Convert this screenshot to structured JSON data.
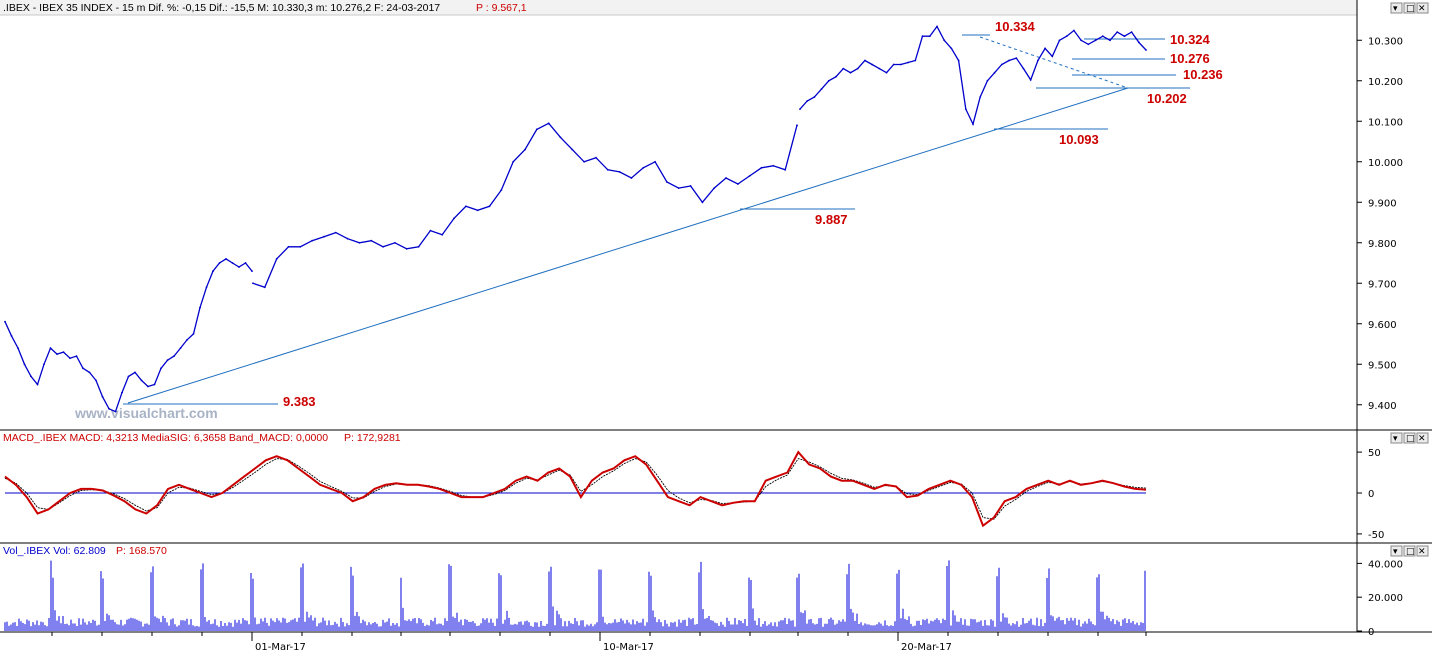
{
  "panels": {
    "price": {
      "header_prefix": ".IBEX",
      "header": ".IBEX - IBEX 35 INDEX -  15 m  Dif. %: -0,15  Dif.: -15,5  M: 10.330,3  m: 10.276,2  F: 24-03-2017",
      "header_p": "P : 9.567,1"
    },
    "macd": {
      "header": "MACD_.IBEX MACD: 4,3213  MediaSIG: 6,3658  Band_MACD: 0,0000",
      "header_p": "P: 172,9281"
    },
    "volume": {
      "header": "Vol_.IBEX Vol: 62.809",
      "header_p": "P: 168.570"
    }
  },
  "watermark": "www.visualchart.com",
  "window_buttons": [
    "▾",
    "□",
    "✕"
  ],
  "colors": {
    "price_line": "#0000cc",
    "trend_line": "#1f6fbf",
    "level_text": "#cc0000",
    "macd_line": "#cc0000",
    "signal_line": "#000000",
    "volume_bar": "#0000dd",
    "axis": "#000000"
  },
  "chart_data": [
    {
      "type": "line",
      "title": ".IBEX - IBEX 35 INDEX - 15 m",
      "x_tick_labels": [
        "01-Mar-17",
        "10-Mar-17",
        "20-Mar-17"
      ],
      "y_ticks": [
        "9.400",
        "9.500",
        "9.600",
        "9.700",
        "9.800",
        "9.900",
        "10.000",
        "10.100",
        "10.200",
        "10.300"
      ],
      "ylim": [
        9350,
        10350
      ],
      "series": [
        {
          "values": [
            9605,
            9570,
            9540,
            9500,
            9470,
            9450,
            9500,
            9540,
            9525,
            9530,
            9515,
            9520,
            9490,
            9480,
            9460,
            9420,
            9390,
            9383,
            9430,
            9470,
            9480,
            9460,
            9445,
            9450,
            9490,
            9510,
            9520,
            9540,
            9560,
            9575,
            9640,
            9690,
            9730,
            9750,
            9760,
            9750,
            9740,
            9750,
            9730,
            9700,
            9690,
            9760,
            9790,
            9790,
            9805,
            9815,
            9825,
            9810,
            9800,
            9805,
            9790,
            9800,
            9785,
            9790,
            9830,
            9820,
            9860,
            9890,
            9880,
            9890,
            9930,
            10000,
            10030,
            10080,
            10095,
            10060,
            10030,
            10000,
            10010,
            9980,
            9975,
            9960,
            9985,
            10000,
            9950,
            9935,
            9940,
            9900,
            9935,
            9960,
            9945,
            9965,
            9985,
            9990,
            9980,
            10090,
            10130,
            10150,
            10160,
            10180,
            10200,
            10210,
            10230,
            10220,
            10230,
            10250,
            10240,
            10230,
            10220,
            10240,
            10240,
            10245,
            10250,
            10310,
            10310,
            10334,
            10300,
            10280,
            10250,
            10130,
            10093,
            10160,
            10200,
            10220,
            10240,
            10250,
            10256,
            10230,
            10202,
            10250,
            10280,
            10260,
            10300,
            10310,
            10324,
            10300,
            10290,
            10300,
            10310,
            10300,
            10320,
            10310,
            10320,
            10295,
            10276
          ]
        }
      ],
      "annotations": [
        "9.383",
        "9.887",
        "10.093",
        "10.202",
        "10.236",
        "10.276",
        "10.324",
        "10.334"
      ],
      "grid": false
    },
    {
      "type": "line",
      "title": "MACD",
      "y_ticks": [
        "50",
        "0",
        "-50"
      ],
      "ylim": [
        -55,
        55
      ],
      "series": [
        {
          "name": "MACD",
          "values": [
            20,
            10,
            -5,
            -25,
            -20,
            -10,
            0,
            5,
            5,
            3,
            -3,
            -10,
            -20,
            -25,
            -15,
            5,
            10,
            5,
            0,
            -5,
            0,
            10,
            20,
            30,
            40,
            45,
            40,
            30,
            20,
            10,
            5,
            0,
            -10,
            -5,
            5,
            10,
            12,
            10,
            10,
            8,
            5,
            0,
            -5,
            -5,
            -5,
            0,
            5,
            15,
            20,
            15,
            25,
            30,
            20,
            -5,
            15,
            25,
            30,
            40,
            45,
            35,
            15,
            -5,
            -10,
            -15,
            -5,
            -10,
            -15,
            -12,
            -10,
            -10,
            15,
            20,
            25,
            50,
            35,
            30,
            20,
            15,
            15,
            10,
            5,
            10,
            8,
            -5,
            -3,
            5,
            10,
            15,
            10,
            -5,
            -40,
            -30,
            -10,
            -5,
            5,
            10,
            15,
            10,
            15,
            10,
            12,
            15,
            12,
            8,
            5,
            4
          ]
        },
        {
          "name": "MediaSIG",
          "values": [
            18,
            12,
            0,
            -18,
            -20,
            -12,
            -3,
            3,
            4,
            3,
            -1,
            -7,
            -15,
            -22,
            -18,
            0,
            7,
            6,
            2,
            -2,
            0,
            7,
            16,
            25,
            35,
            42,
            41,
            33,
            24,
            14,
            8,
            2,
            -6,
            -6,
            2,
            8,
            11,
            10,
            10,
            9,
            6,
            2,
            -3,
            -5,
            -5,
            -2,
            3,
            12,
            18,
            16,
            22,
            28,
            22,
            2,
            10,
            20,
            27,
            36,
            42,
            38,
            22,
            3,
            -6,
            -12,
            -8,
            -9,
            -13,
            -12,
            -11,
            -10,
            8,
            16,
            22,
            42,
            38,
            32,
            24,
            18,
            16,
            12,
            7,
            9,
            8,
            -1,
            -2,
            3,
            8,
            13,
            11,
            0,
            -30,
            -32,
            -16,
            -8,
            2,
            8,
            13,
            11,
            14,
            11,
            12,
            14,
            12,
            9,
            7,
            6
          ]
        }
      ]
    },
    {
      "type": "bar",
      "title": "Vol_.IBEX",
      "y_ticks": [
        "40.000",
        "20.000",
        "0"
      ],
      "ylim": [
        0,
        42000
      ]
    }
  ]
}
